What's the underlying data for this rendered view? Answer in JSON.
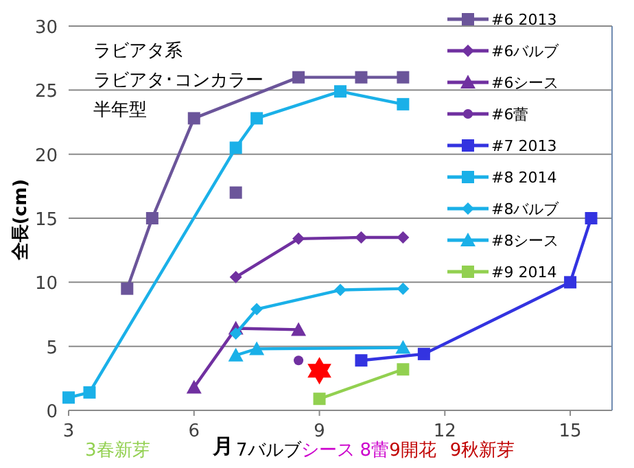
{
  "chart_data": {
    "type": "line",
    "xlabel": "月",
    "ylabel": "全長(cm)",
    "xlim": [
      3,
      16
    ],
    "xticks": [
      3,
      6,
      9,
      12,
      15
    ],
    "ylim": [
      0,
      30
    ],
    "yticks": [
      0,
      5,
      10,
      15,
      20,
      25,
      30
    ],
    "grid": "y",
    "legend": "right",
    "annotations": [
      "ラビアタ系",
      "ラビアタ･コンカラー",
      "半年型",
      "3春新芽",
      "7バルブ",
      "シース",
      "8蕾",
      "9開花",
      "9秋新芽"
    ],
    "series": [
      {
        "name": "#6 2013",
        "color": "#6b559a",
        "marker": "square",
        "x": [
          4.4,
          5,
          6,
          8.5,
          10,
          11
        ],
        "values": [
          9.5,
          15,
          22.8,
          26,
          26,
          26
        ]
      },
      {
        "name": "#6バルブ",
        "color": "#7030a0",
        "marker": "diamond",
        "x": [
          7,
          8.5,
          10,
          11
        ],
        "values": [
          10.4,
          13.4,
          13.5,
          13.5
        ]
      },
      {
        "name": "#6シース",
        "color": "#7030a0",
        "marker": "triangle",
        "x": [
          6,
          7,
          8.5
        ],
        "values": [
          1.8,
          6.4,
          6.3
        ]
      },
      {
        "name": "#6蕾",
        "color": "#7030a0",
        "marker": "circle",
        "x": [
          8.5
        ],
        "values": [
          3.9
        ]
      },
      {
        "name": "#7 2013",
        "color": "#3333e0",
        "marker": "square",
        "x": [
          10,
          11.5,
          15,
          15.5
        ],
        "values": [
          3.9,
          4.4,
          10,
          15
        ]
      },
      {
        "name": "#8 2014",
        "color": "#1ab0e8",
        "marker": "square",
        "x": [
          3,
          3.5,
          7,
          7.5,
          9.5,
          11
        ],
        "values": [
          1,
          1.4,
          20.5,
          22.8,
          24.9,
          23.9
        ]
      },
      {
        "name": "#8バルブ",
        "color": "#1ab0e8",
        "marker": "diamond",
        "x": [
          7,
          7.5,
          9.5,
          11
        ],
        "values": [
          6,
          7.9,
          9.4,
          9.5
        ]
      },
      {
        "name": "#8シース",
        "color": "#1ab0e8",
        "marker": "triangle",
        "x": [
          7,
          7.5,
          11
        ],
        "values": [
          4.3,
          4.8,
          4.9
        ]
      },
      {
        "name": "#9 2014",
        "color": "#92d050",
        "marker": "square",
        "x": [
          9,
          11
        ],
        "values": [
          0.9,
          3.2
        ]
      },
      {
        "type": "scatter",
        "color": "#6b559a",
        "marker": "square",
        "x": [
          7
        ],
        "values": [
          17
        ]
      },
      {
        "type": "scatter",
        "color": "#ff0000",
        "marker": "star",
        "x": [
          9
        ],
        "values": [
          3.1
        ]
      }
    ]
  }
}
